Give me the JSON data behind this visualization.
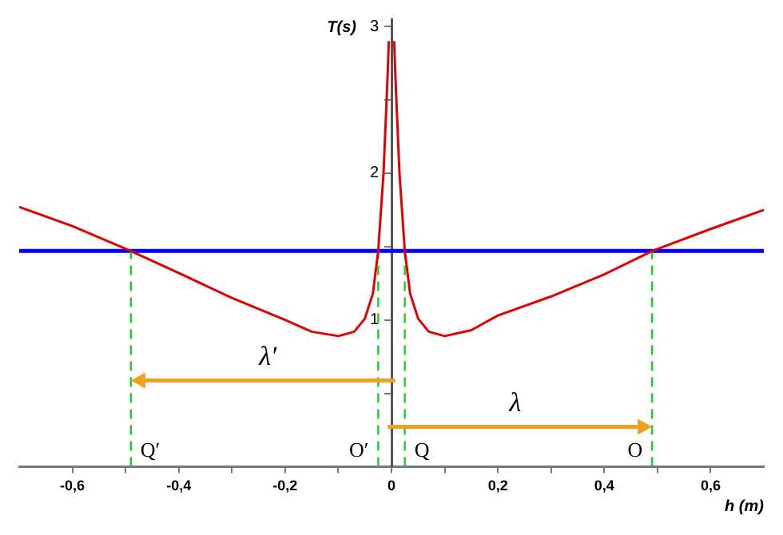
{
  "chart_data": {
    "type": "line",
    "xlabel": "h (m)",
    "ylabel": "T(s)",
    "series": [
      {
        "color": "#e00000",
        "x": [
          -0.7,
          -0.6,
          -0.49,
          -0.4,
          -0.3,
          -0.2,
          -0.15,
          -0.1,
          -0.07,
          -0.05,
          -0.035,
          -0.025,
          -0.015,
          -0.008,
          -0.005,
          0,
          0.005,
          0.008,
          0.015,
          0.025,
          0.035,
          0.05,
          0.07,
          0.1,
          0.15,
          0.2,
          0.3,
          0.4,
          0.49,
          0.6,
          0.7
        ],
        "values": [
          1.77,
          1.64,
          1.47,
          1.32,
          1.15,
          1.0,
          0.92,
          0.89,
          0.92,
          1.01,
          1.18,
          1.47,
          2.0,
          2.6,
          2.9,
          null,
          2.9,
          2.6,
          2.0,
          1.47,
          1.18,
          1.01,
          0.92,
          0.89,
          0.93,
          1.03,
          1.16,
          1.31,
          1.47,
          1.62,
          1.75
        ]
      }
    ],
    "xlim": [
      -0.7,
      0.7
    ],
    "ylim": [
      0,
      3.05
    ],
    "xticks": [
      {
        "value": -0.6,
        "label": "-0,6"
      },
      {
        "value": -0.5,
        "label": null
      },
      {
        "value": -0.4,
        "label": "-0,4"
      },
      {
        "value": -0.3,
        "label": null
      },
      {
        "value": -0.2,
        "label": "-0,2"
      },
      {
        "value": -0.1,
        "label": null
      },
      0,
      {
        "value": 0.1,
        "label": null
      },
      {
        "value": 0.2,
        "label": "0,2"
      },
      {
        "value": 0.3,
        "label": null
      },
      {
        "value": 0.4,
        "label": "0,4"
      },
      {
        "value": 0.5,
        "label": null
      },
      {
        "value": 0.6,
        "label": "0,6"
      }
    ],
    "yticks": [
      {
        "value": 0.5,
        "label": null
      },
      1,
      {
        "value": 1.5,
        "label": null
      },
      2,
      {
        "value": 2.5,
        "label": null
      },
      3
    ],
    "ref_lines": [
      {
        "axis": "y",
        "value": 1.47,
        "color": "#0000ff"
      },
      {
        "axis": "x",
        "value": -0.49,
        "label": "Q′",
        "color": "#22cc22",
        "line_style": "dashed"
      },
      {
        "axis": "x",
        "value": -0.025,
        "label": "O′",
        "color": "#22cc22",
        "line_style": "dashed"
      },
      {
        "axis": "x",
        "value": 0.025,
        "label": "Q",
        "color": "#22cc22",
        "line_style": "dashed"
      },
      {
        "axis": "x",
        "value": 0.49,
        "label": "O",
        "color": "#22cc22",
        "line_style": "dashed"
      }
    ],
    "annotations": [
      "λ′",
      "λ"
    ],
    "grid": false,
    "legend": false,
    "marker": "none",
    "line_style": "solid"
  }
}
